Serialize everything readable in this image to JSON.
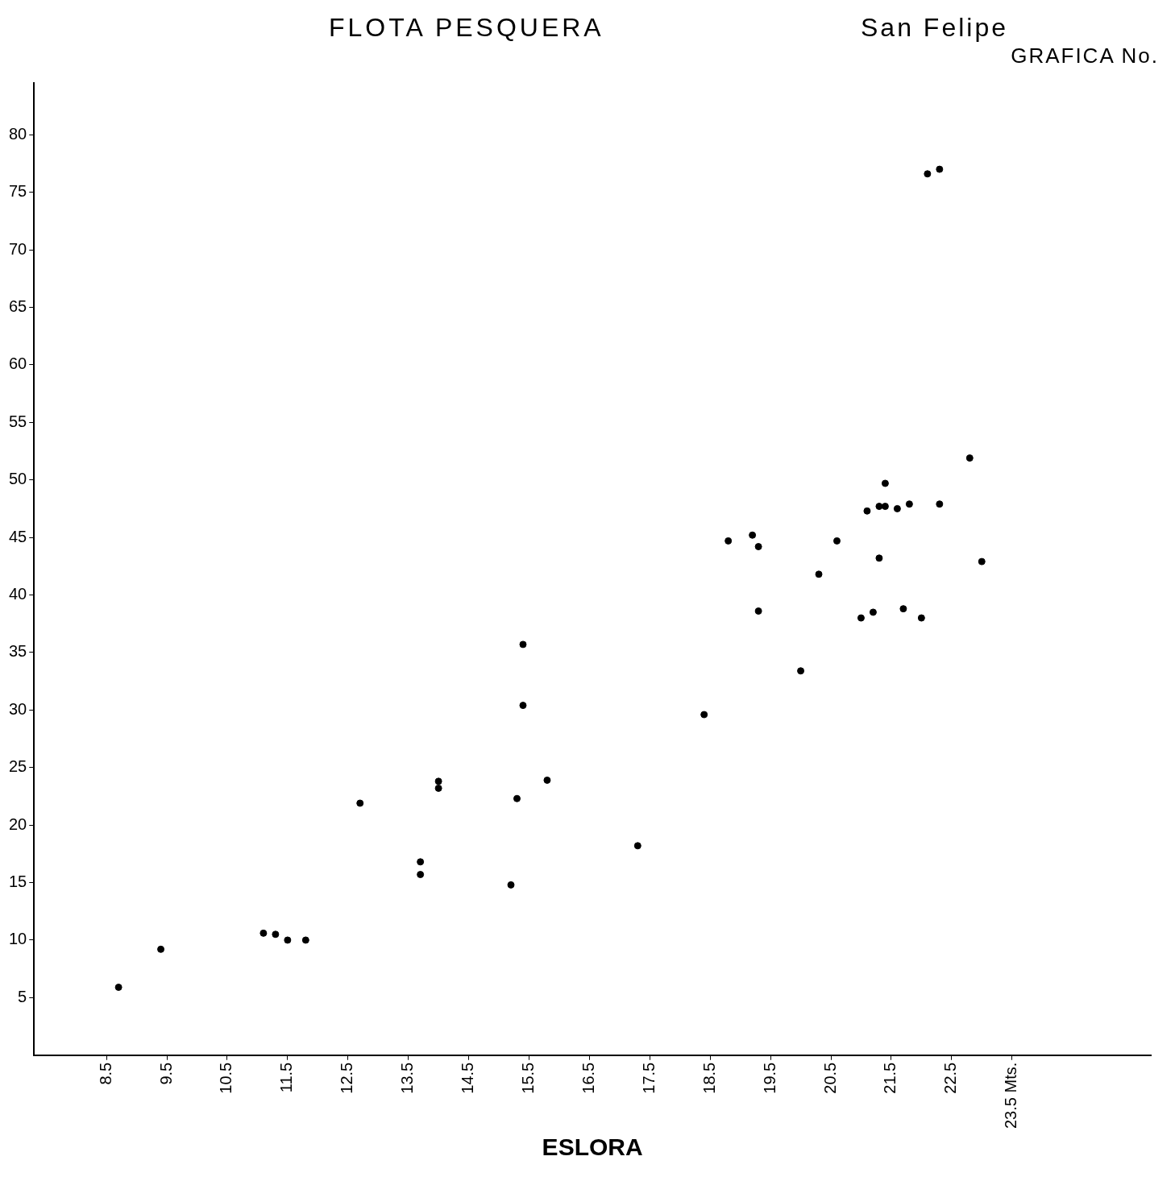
{
  "chart_data": {
    "type": "scatter",
    "title": "FLOTA PESQUERA",
    "subtitle": "San Felipe",
    "xlabel": "ESLORA",
    "annotations": [
      "GRAFICA No."
    ],
    "x": [
      8.7,
      9.4,
      11.1,
      11.3,
      11.5,
      11.8,
      12.7,
      13.7,
      13.7,
      14.0,
      14.0,
      15.2,
      15.3,
      15.4,
      15.4,
      15.8,
      17.3,
      18.4,
      18.8,
      19.2,
      19.3,
      19.3,
      20.0,
      20.3,
      20.6,
      21.0,
      21.1,
      21.2,
      21.3,
      21.3,
      21.4,
      21.4,
      21.6,
      21.7,
      21.8,
      22.0,
      22.1,
      22.3,
      22.3,
      22.8,
      23.0
    ],
    "values": [
      5.9,
      9.2,
      10.6,
      10.5,
      10.0,
      10.0,
      21.9,
      16.8,
      15.7,
      23.8,
      23.2,
      14.8,
      22.3,
      30.4,
      35.7,
      23.9,
      18.2,
      29.6,
      44.7,
      45.2,
      44.2,
      38.6,
      33.4,
      41.8,
      44.7,
      38.0,
      47.3,
      38.5,
      47.7,
      43.2,
      49.7,
      47.7,
      47.5,
      38.8,
      47.9,
      38.0,
      76.6,
      77.0,
      47.9,
      51.9,
      42.9
    ],
    "color": "#000000",
    "marker": "circle",
    "grid": false,
    "legend": false,
    "xlim": [
      7.3,
      25.8
    ],
    "xticks": [
      8.5,
      9.5,
      10.5,
      11.5,
      12.5,
      13.5,
      14.5,
      15.5,
      16.5,
      17.5,
      18.5,
      19.5,
      20.5,
      21.5,
      22.5,
      {
        "value": 23.5,
        "label": "23.5 Mts."
      }
    ],
    "ylim": [
      0,
      84.5
    ],
    "yticks": [
      5,
      10,
      15,
      20,
      25,
      30,
      35,
      40,
      45,
      50,
      55,
      60,
      65,
      70,
      75,
      80
    ]
  }
}
